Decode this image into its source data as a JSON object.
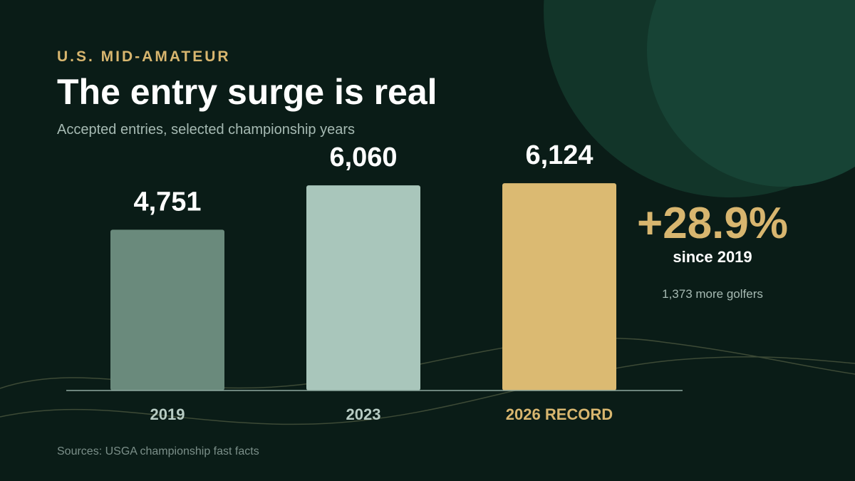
{
  "eyebrow": "U.S. MID-AMATEUR",
  "title": "The entry surge is real",
  "subtitle": "Accepted entries, selected championship years",
  "chart_data": {
    "type": "bar",
    "categories": [
      "2019",
      "2023",
      "2026 RECORD"
    ],
    "values": [
      4751,
      6060,
      6124
    ],
    "value_labels": [
      "4,751",
      "6,060",
      "6,124"
    ],
    "ylim": [
      0,
      6800
    ],
    "grid": false,
    "colors": [
      "#6a8a7c",
      "#a9c6bb",
      "#dbba72"
    ]
  },
  "callout": {
    "value": "+28.9%",
    "label": "since 2019",
    "note": "1,373 more golfers"
  },
  "source": "Sources: USGA championship fast facts",
  "colors": {
    "background": "#0a1c17",
    "accent": "#d8b66f",
    "circle": "#133d31",
    "text_muted": "#a6bab3"
  }
}
